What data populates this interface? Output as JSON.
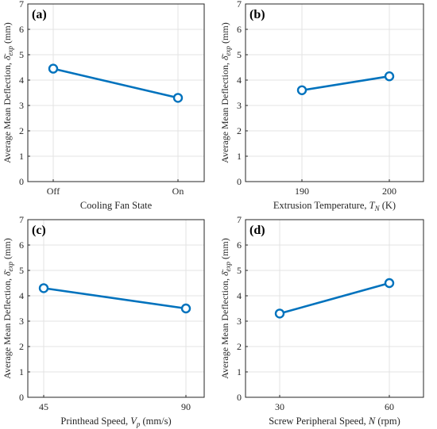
{
  "chart_data": [
    {
      "type": "line",
      "panel_label": "(a)",
      "categories": [
        "Off",
        "On"
      ],
      "values": [
        4.45,
        3.3
      ],
      "xlabel": "Cooling Fan State",
      "ylabel": "Average Mean Deflection, δ̄exp (mm)",
      "ylim": [
        0,
        7
      ],
      "yticks": [
        "0",
        "1",
        "2",
        "3",
        "4",
        "5",
        "6",
        "7"
      ],
      "grid": true,
      "marker": "circle",
      "color": "#0072bd"
    },
    {
      "type": "line",
      "panel_label": "(b)",
      "categories": [
        "190",
        "200"
      ],
      "values": [
        3.6,
        4.15
      ],
      "xlabel": "Extrusion Temperature, TN (K)",
      "ylabel": "Average Mean Deflection, δ̄exp (mm)",
      "ylim": [
        0,
        7
      ],
      "yticks": [
        "0",
        "1",
        "2",
        "3",
        "4",
        "5",
        "6",
        "7"
      ],
      "grid": true,
      "marker": "circle",
      "color": "#0072bd"
    },
    {
      "type": "line",
      "panel_label": "(c)",
      "categories": [
        "45",
        "90"
      ],
      "values": [
        4.3,
        3.5
      ],
      "xlabel": "Printhead Speed, Vp (mm/s)",
      "ylabel": "Average Mean Deflection, δ̄exp (mm)",
      "ylim": [
        0,
        7
      ],
      "yticks": [
        "0",
        "1",
        "2",
        "3",
        "4",
        "5",
        "6",
        "7"
      ],
      "grid": true,
      "marker": "circle",
      "color": "#0072bd"
    },
    {
      "type": "line",
      "panel_label": "(d)",
      "categories": [
        "30",
        "60"
      ],
      "values": [
        3.3,
        4.5
      ],
      "xlabel": "Screw Peripheral Speed, N (rpm)",
      "ylabel": "Average Mean Deflection, δ̄exp (mm)",
      "ylim": [
        0,
        7
      ],
      "yticks": [
        "0",
        "1",
        "2",
        "3",
        "4",
        "5",
        "6",
        "7"
      ],
      "grid": true,
      "marker": "circle",
      "color": "#0072bd"
    }
  ]
}
